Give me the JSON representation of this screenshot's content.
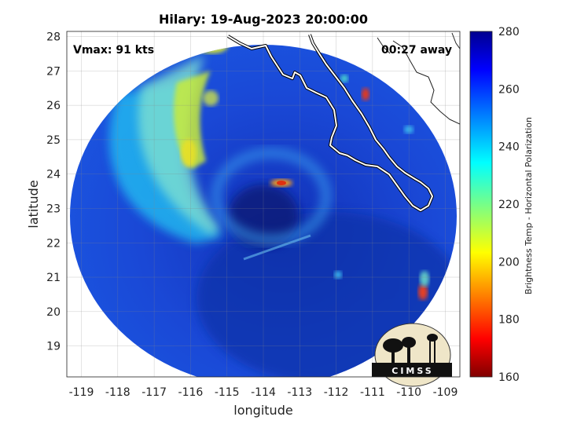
{
  "title": "Hilary: 19-Aug-2023 20:00:00",
  "annotations": {
    "vmax": "Vmax: 91 kts",
    "time_away": "00:27 away"
  },
  "axes": {
    "xlabel": "longitude",
    "ylabel": "latitude",
    "x_ticks": [
      "-119",
      "-118",
      "-117",
      "-116",
      "-115",
      "-114",
      "-113",
      "-112",
      "-111",
      "-110",
      "-109"
    ],
    "y_ticks": [
      "28",
      "27",
      "26",
      "25",
      "24",
      "23",
      "22",
      "21",
      "20",
      "19"
    ],
    "x_range": [
      -119.4,
      -108.6
    ],
    "y_range": [
      18.1,
      28.15
    ],
    "grid": true
  },
  "colorbar": {
    "label": "Brightness Temp - Horizontal Polarization",
    "ticks": [
      "280",
      "260",
      "240",
      "220",
      "200",
      "180",
      "160"
    ],
    "range": [
      160,
      280
    ],
    "colormap": "jet"
  },
  "logo": {
    "text": "CIMSS"
  },
  "storm": {
    "name": "Hilary",
    "center_lon": -113.8,
    "center_lat": 23.8
  }
}
